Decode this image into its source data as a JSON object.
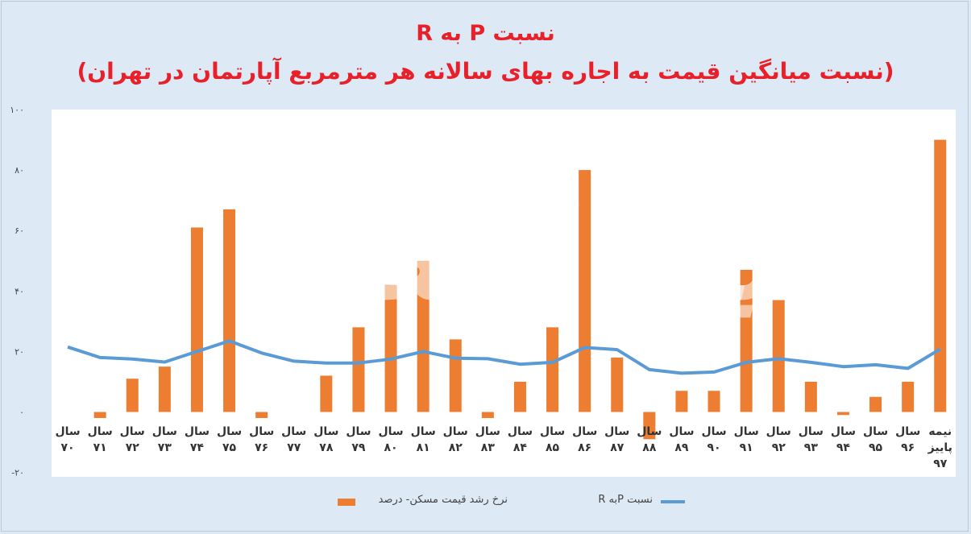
{
  "title_line1": "نسبت  P به  R",
  "title_line2": "(نسبت میانگین قیمت به اجاره بهای سالانه هر مترمربع آپارتمان در تهران)",
  "watermark": "دنیای اقتصاد",
  "legend": {
    "bars_label": "نرخ رشد قیمت مسکن- درصد",
    "line_label": "نسبت  Pبه R"
  },
  "chart_data": {
    "type": "bar",
    "ylim": [
      -20,
      100
    ],
    "yticks": [
      -20,
      0,
      20,
      40,
      60,
      80,
      100
    ],
    "ytick_labels": [
      "-۲۰",
      "۰",
      "۲۰",
      "۴۰",
      "۶۰",
      "۸۰",
      "۱۰۰"
    ],
    "grid": false,
    "legend_position": "bottom",
    "categories": [
      [
        "سال",
        "۷۰"
      ],
      [
        "سال",
        "۷۱"
      ],
      [
        "سال",
        "۷۲"
      ],
      [
        "سال",
        "۷۳"
      ],
      [
        "سال",
        "۷۴"
      ],
      [
        "سال",
        "۷۵"
      ],
      [
        "سال",
        "۷۶"
      ],
      [
        "سال",
        "۷۷"
      ],
      [
        "سال",
        "۷۸"
      ],
      [
        "سال",
        "۷۹"
      ],
      [
        "سال",
        "۸۰"
      ],
      [
        "سال",
        "۸۱"
      ],
      [
        "سال",
        "۸۲"
      ],
      [
        "سال",
        "۸۳"
      ],
      [
        "سال",
        "۸۴"
      ],
      [
        "سال",
        "۸۵"
      ],
      [
        "سال",
        "۸۶"
      ],
      [
        "سال",
        "۸۷"
      ],
      [
        "سال",
        "۸۸"
      ],
      [
        "سال",
        "۸۹"
      ],
      [
        "سال",
        "۹۰"
      ],
      [
        "سال",
        "۹۱"
      ],
      [
        "سال",
        "۹۲"
      ],
      [
        "سال",
        "۹۳"
      ],
      [
        "سال",
        "۹۴"
      ],
      [
        "سال",
        "۹۵"
      ],
      [
        "سال",
        "۹۶"
      ],
      [
        "نیمه",
        "پاییز",
        "۹۷"
      ]
    ],
    "series": [
      {
        "name": "نرخ رشد قیمت مسکن- درصد",
        "type": "bar",
        "color": "#ed7d31",
        "values": [
          0,
          -2,
          11,
          15,
          61,
          67,
          -2,
          0,
          12,
          28,
          42,
          50,
          24,
          -2,
          10,
          28,
          80,
          18,
          -9,
          7,
          7,
          47,
          37,
          10,
          -1,
          5,
          10,
          90
        ]
      },
      {
        "name": "نسبت  Pبه R",
        "type": "line",
        "color": "#5b9bd5",
        "values": [
          21.5,
          18,
          17.5,
          16.5,
          20,
          23.5,
          19.5,
          16.8,
          16.2,
          16.2,
          17.5,
          20,
          17.8,
          17.6,
          15.8,
          16.4,
          21.3,
          20.6,
          14,
          12.8,
          13.2,
          16.4,
          17.6,
          16.4,
          15,
          15.6,
          14.4,
          20.8
        ]
      }
    ]
  }
}
